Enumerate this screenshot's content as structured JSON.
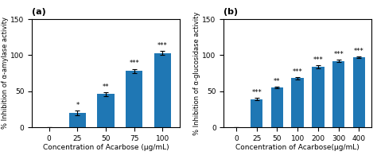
{
  "chart_data": [
    {
      "type": "bar",
      "title": "(a)",
      "categories": [
        "0",
        "25",
        "50",
        "75",
        "100"
      ],
      "values": [
        0,
        20,
        46,
        78,
        103
      ],
      "errors": [
        0,
        3.5,
        2.5,
        3.0,
        2.5
      ],
      "annotations": [
        null,
        "*",
        "**",
        "***",
        "***"
      ],
      "x_label": "Concentration of Acarbose (μg/mL)",
      "y_label": "% Inhibition of α-amylase activity",
      "ylim": [
        0,
        150
      ],
      "yticks": [
        0,
        50,
        100,
        150
      ],
      "grid": false
    },
    {
      "type": "bar",
      "title": "(b)",
      "categories": [
        "0",
        "25",
        "50",
        "100",
        "200",
        "300",
        "400"
      ],
      "values": [
        0,
        39,
        55,
        68,
        84,
        92,
        97
      ],
      "errors": [
        0,
        1.5,
        1.5,
        1.5,
        2.0,
        1.5,
        1.5
      ],
      "annotations": [
        null,
        "***",
        "**",
        "***",
        "***",
        "***",
        "***"
      ],
      "x_label": "Concentration of Acarbose(μg/mL)",
      "y_label": "% Inhibition of α-glucosidase activity",
      "ylim": [
        0,
        150
      ],
      "yticks": [
        0,
        50,
        100,
        150
      ],
      "grid": false
    }
  ]
}
